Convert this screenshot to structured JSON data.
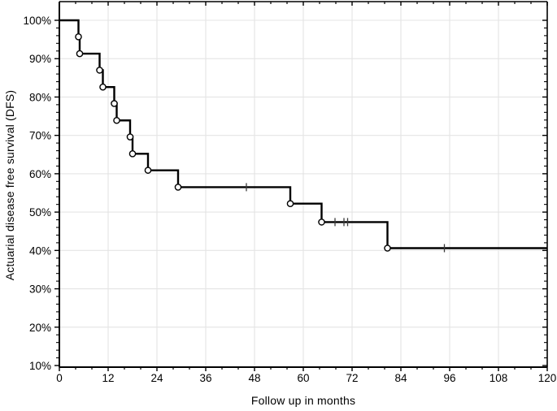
{
  "chart_data": {
    "type": "line",
    "subtype": "kaplan-meier-step",
    "title": "",
    "xlabel": "Follow up in months",
    "ylabel": "Actuarial disease free survival (DFS)",
    "x_axis": {
      "min": 0,
      "max": 120,
      "major_ticks": [
        0,
        12,
        24,
        36,
        48,
        60,
        72,
        84,
        96,
        108,
        120
      ],
      "minor_step": 4,
      "tick_label_suffix": ""
    },
    "y_axis": {
      "min_label_pct": 10,
      "max_label_pct": 100,
      "major_ticks_pct": [
        100,
        90,
        80,
        70,
        60,
        50,
        40,
        30,
        20,
        10
      ],
      "minor_step_pct": 2,
      "tick_label_suffix": "%"
    },
    "grid": true,
    "legend": "none",
    "series": [
      {
        "name": "DFS",
        "start": [
          0,
          100
        ],
        "step_points": [
          [
            4.7,
            95.7
          ],
          [
            5.0,
            91.3
          ],
          [
            9.9,
            87.0
          ],
          [
            10.7,
            82.6
          ],
          [
            13.5,
            78.3
          ],
          [
            14.1,
            73.9
          ],
          [
            17.4,
            69.6
          ],
          [
            18.0,
            65.2
          ],
          [
            21.8,
            60.9
          ],
          [
            29.2,
            56.5
          ],
          [
            56.8,
            52.2
          ],
          [
            64.5,
            47.4
          ],
          [
            80.7,
            40.6
          ]
        ],
        "end_time": 120,
        "end_survival_pct": 40.6,
        "event_marker": "open-circle",
        "censored_marker": "vertical-tick",
        "censored_points": [
          [
            46.0,
            56.5
          ],
          [
            67.8,
            47.4
          ],
          [
            70.0,
            47.4
          ],
          [
            70.9,
            47.4
          ],
          [
            94.7,
            40.6
          ]
        ]
      }
    ],
    "colors": {
      "curve": "#000000",
      "marker_fill": "#ffffff",
      "marker_stroke": "#000000",
      "censor_tick": "#3c3c3c",
      "grid": "#e4e4e4",
      "frame": "#000000",
      "text": "#000000",
      "background": "#ffffff"
    }
  }
}
